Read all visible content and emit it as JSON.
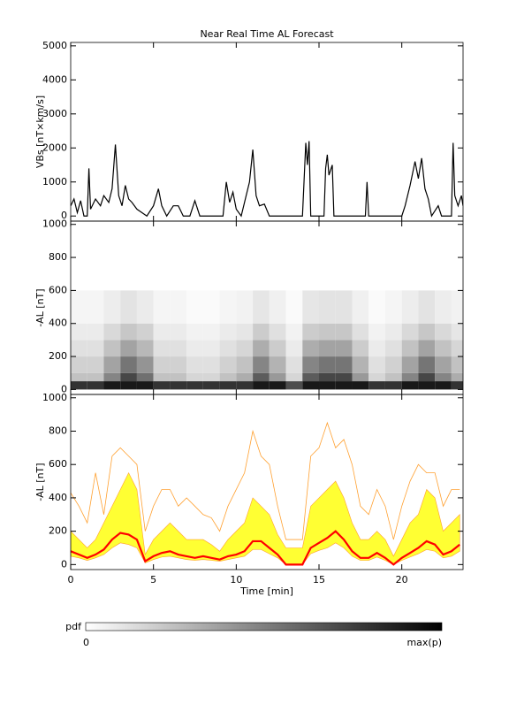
{
  "chart_data": [
    {
      "type": "line",
      "title": "Near Real Time AL Forecast",
      "ylabel": "VBs [nT×km/s]",
      "color": "#000000",
      "xlim": [
        0,
        23.7
      ],
      "xticks": [
        0,
        5,
        10,
        15,
        20
      ],
      "ylim": [
        -150,
        5100
      ],
      "yticks": [
        0,
        1000,
        2000,
        3000,
        4000,
        5000
      ],
      "x": [
        0,
        0.2,
        0.4,
        0.6,
        0.8,
        1.0,
        1.1,
        1.2,
        1.5,
        1.8,
        2.0,
        2.3,
        2.5,
        2.7,
        2.9,
        3.1,
        3.3,
        3.5,
        3.7,
        4.0,
        4.3,
        4.6,
        5.0,
        5.3,
        5.5,
        5.8,
        6.2,
        6.5,
        6.8,
        7.2,
        7.5,
        7.8,
        8.5,
        9.2,
        9.4,
        9.6,
        9.8,
        10.0,
        10.3,
        10.6,
        10.8,
        11.0,
        11.2,
        11.4,
        11.7,
        12.0,
        13.5,
        14.0,
        14.2,
        14.3,
        14.4,
        14.5,
        15.3,
        15.4,
        15.5,
        15.6,
        15.8,
        15.9,
        17.8,
        17.9,
        18.0,
        20.0,
        20.2,
        20.5,
        20.8,
        21.0,
        21.2,
        21.4,
        21.6,
        21.8,
        22.2,
        22.4,
        23.0,
        23.1,
        23.2,
        23.4,
        23.6,
        23.7
      ],
      "values": [
        300,
        500,
        100,
        450,
        0,
        0,
        1400,
        200,
        500,
        300,
        600,
        400,
        800,
        2100,
        600,
        300,
        900,
        500,
        400,
        200,
        100,
        0,
        300,
        800,
        300,
        0,
        300,
        300,
        0,
        0,
        450,
        0,
        0,
        0,
        1000,
        400,
        700,
        200,
        0,
        600,
        1000,
        1950,
        600,
        300,
        350,
        0,
        0,
        0,
        2150,
        1500,
        2200,
        0,
        0,
        1400,
        1800,
        1200,
        1500,
        0,
        0,
        1000,
        0,
        0,
        300,
        900,
        1600,
        1100,
        1700,
        800,
        500,
        0,
        300,
        0,
        0,
        2150,
        600,
        300,
        600,
        300
      ]
    },
    {
      "type": "heatmap",
      "ylabel": "-AL [nT]",
      "xlim": [
        0,
        23.7
      ],
      "xticks": [
        0,
        5,
        10,
        15,
        20
      ],
      "ylim": [
        -30,
        1020
      ],
      "yticks": [
        0,
        200,
        400,
        600,
        800,
        1000
      ],
      "x_edges": [
        0,
        1,
        2,
        3,
        4,
        5,
        6,
        7,
        8,
        9,
        10,
        11,
        12,
        13,
        14,
        15,
        16,
        17,
        18,
        19,
        20,
        21,
        22,
        23,
        24
      ],
      "y_edges": [
        0,
        50,
        100,
        200,
        300,
        400,
        600
      ],
      "z": [
        [
          0.8,
          0.8,
          0.9,
          0.9,
          0.9,
          0.8,
          0.8,
          0.8,
          0.8,
          0.8,
          0.8,
          0.9,
          0.9,
          0.7,
          0.9,
          0.9,
          0.9,
          0.9,
          0.8,
          0.8,
          0.9,
          0.9,
          0.9,
          0.8
        ],
        [
          0.24,
          0.24,
          0.48,
          0.72,
          0.56,
          0.24,
          0.24,
          0.16,
          0.16,
          0.24,
          0.32,
          0.64,
          0.4,
          0.16,
          0.64,
          0.72,
          0.72,
          0.4,
          0.16,
          0.24,
          0.48,
          0.72,
          0.48,
          0.32
        ],
        [
          0.18,
          0.18,
          0.36,
          0.54,
          0.42,
          0.18,
          0.18,
          0.12,
          0.12,
          0.18,
          0.24,
          0.48,
          0.3,
          0.12,
          0.48,
          0.54,
          0.54,
          0.3,
          0.12,
          0.18,
          0.36,
          0.54,
          0.36,
          0.24
        ],
        [
          0.12,
          0.12,
          0.24,
          0.36,
          0.28,
          0.12,
          0.12,
          0.08,
          0.08,
          0.12,
          0.16,
          0.32,
          0.2,
          0.08,
          0.32,
          0.36,
          0.36,
          0.2,
          0.08,
          0.12,
          0.24,
          0.36,
          0.24,
          0.16
        ],
        [
          0.08,
          0.08,
          0.15,
          0.22,
          0.18,
          0.08,
          0.08,
          0.05,
          0.05,
          0.08,
          0.1,
          0.2,
          0.12,
          0.05,
          0.2,
          0.22,
          0.22,
          0.12,
          0.05,
          0.08,
          0.15,
          0.22,
          0.15,
          0.1
        ],
        [
          0.04,
          0.04,
          0.07,
          0.11,
          0.08,
          0.04,
          0.04,
          0.02,
          0.02,
          0.04,
          0.05,
          0.1,
          0.06,
          0.02,
          0.1,
          0.11,
          0.11,
          0.06,
          0.02,
          0.04,
          0.07,
          0.11,
          0.07,
          0.05
        ]
      ]
    },
    {
      "type": "band",
      "ylabel": "-AL [nT]",
      "xlabel": "Time [min]",
      "xlim": [
        0,
        23.7
      ],
      "xticks": [
        0,
        5,
        10,
        15,
        20
      ],
      "ylim": [
        -30,
        1020
      ],
      "yticks": [
        0,
        200,
        400,
        600,
        800,
        1000
      ],
      "x": [
        0,
        0.5,
        1,
        1.5,
        2,
        2.5,
        3,
        3.5,
        4,
        4.5,
        5,
        5.5,
        6,
        6.5,
        7,
        7.5,
        8,
        8.5,
        9,
        9.5,
        10,
        10.5,
        11,
        11.5,
        12,
        12.5,
        13,
        13.5,
        14,
        14.5,
        15,
        15.5,
        16,
        16.5,
        17,
        17.5,
        18,
        18.5,
        19,
        19.5,
        20,
        20.5,
        21,
        21.5,
        22,
        22.5,
        23,
        23.5
      ],
      "band": {
        "color": "#ffff33",
        "upper": [
          200,
          150,
          100,
          150,
          250,
          350,
          450,
          550,
          450,
          60,
          150,
          200,
          250,
          200,
          150,
          150,
          150,
          120,
          80,
          150,
          200,
          250,
          400,
          350,
          300,
          180,
          100,
          100,
          100,
          350,
          400,
          450,
          500,
          400,
          250,
          150,
          150,
          200,
          150,
          50,
          150,
          250,
          300,
          450,
          400,
          200,
          250,
          300
        ],
        "lower": [
          50,
          40,
          25,
          40,
          60,
          100,
          130,
          120,
          100,
          10,
          30,
          45,
          50,
          40,
          30,
          25,
          30,
          25,
          20,
          30,
          40,
          50,
          90,
          90,
          65,
          40,
          0,
          0,
          0,
          65,
          85,
          100,
          130,
          100,
          50,
          25,
          25,
          45,
          25,
          0,
          25,
          45,
          65,
          90,
          80,
          40,
          50,
          80
        ]
      },
      "series": [
        {
          "color": "#ffa030",
          "width": 0.8,
          "values": [
            430,
            350,
            250,
            550,
            300,
            650,
            700,
            650,
            600,
            200,
            350,
            450,
            450,
            350,
            400,
            350,
            300,
            280,
            200,
            350,
            450,
            550,
            800,
            650,
            600,
            350,
            150,
            150,
            150,
            650,
            700,
            850,
            700,
            750,
            600,
            350,
            300,
            450,
            350,
            150,
            350,
            500,
            600,
            550,
            550,
            350,
            450,
            450
          ]
        },
        {
          "color": "#ff0000",
          "width": 2.2,
          "values": [
            80,
            60,
            40,
            60,
            90,
            150,
            190,
            180,
            150,
            20,
            50,
            70,
            80,
            60,
            50,
            40,
            50,
            40,
            30,
            50,
            60,
            80,
            140,
            140,
            100,
            60,
            0,
            0,
            0,
            100,
            130,
            160,
            200,
            150,
            80,
            40,
            40,
            70,
            40,
            0,
            40,
            70,
            100,
            140,
            120,
            60,
            80,
            120
          ]
        }
      ]
    }
  ],
  "colorbar": {
    "label": "pdf",
    "min_label": "0",
    "max_label": "max(p)"
  }
}
